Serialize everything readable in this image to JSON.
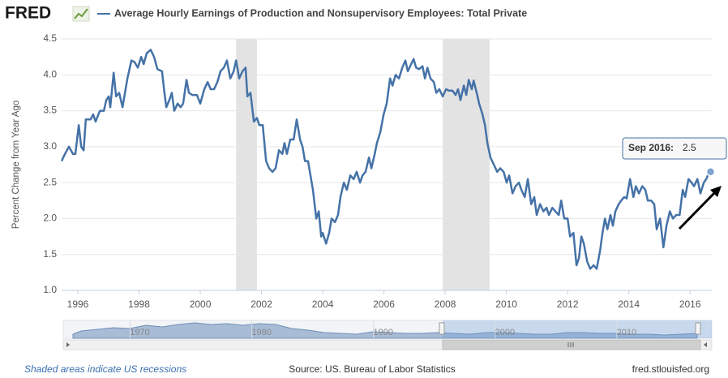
{
  "chart_data": {
    "type": "line",
    "brand": "FRED",
    "title": "Average Hourly Earnings of Production and Nonsupervisory Employees: Total Private",
    "y_label": "Percent Change from Year Ago",
    "footer_left": "Shaded areas indicate US recessions",
    "footer_center": "Source: US. Bureau of Labor Statistics",
    "footer_right": "fred.stlouisfed.org",
    "tooltip_date": "Sep 2016:",
    "color": "#4572a7",
    "recession_color": "#e3e3e3",
    "recessions": [
      [
        2001.17,
        2001.85
      ],
      [
        2007.92,
        2009.45
      ]
    ],
    "xlim": [
      1995.47,
      2016.71
    ],
    "xticks": [
      1996,
      1998,
      2000,
      2002,
      2004,
      2006,
      2008,
      2010,
      2012,
      2014,
      2016
    ],
    "ylim": [
      1,
      4.5
    ],
    "yticks": [
      {
        "value": 1,
        "label": "1.0"
      },
      1.5,
      {
        "value": 2,
        "label": "2.0"
      },
      2.5,
      {
        "value": 3,
        "label": "3.0"
      },
      3.5,
      {
        "value": 4,
        "label": "4.0"
      },
      4.5
    ],
    "grid": true,
    "navigator": {
      "xlim": [
        1964.5,
        2015.8
      ],
      "xticks": [
        1970,
        1980,
        1990,
        2000,
        2010
      ]
    },
    "series": [
      {
        "name": "Average Hourly Earnings of Production and Nonsupervisory Employees: Total Private",
        "color": "#4572a7",
        "x": [
          1995.47,
          1995.58,
          1995.71,
          1995.84,
          1995.92,
          1996.03,
          1996.11,
          1996.19,
          1996.26,
          1996.42,
          1996.5,
          1996.58,
          1996.72,
          1996.85,
          1996.93,
          1997.01,
          1997.06,
          1997.17,
          1997.25,
          1997.35,
          1997.46,
          1997.62,
          1997.75,
          1997.85,
          1997.96,
          1998.07,
          1998.15,
          1998.25,
          1998.38,
          1998.49,
          1998.6,
          1998.75,
          1998.83,
          1998.89,
          1998.99,
          1999.07,
          1999.15,
          1999.26,
          1999.36,
          1999.44,
          1999.55,
          1999.63,
          1999.74,
          1999.89,
          2000,
          2000.13,
          2000.24,
          2000.34,
          2000.45,
          2000.56,
          2000.66,
          2000.77,
          2000.87,
          2000.98,
          2001.09,
          2001.17,
          2001.27,
          2001.38,
          2001.48,
          2001.54,
          2001.64,
          2001.75,
          2001.85,
          2001.93,
          2002.04,
          2002.15,
          2002.25,
          2002.36,
          2002.46,
          2002.57,
          2002.68,
          2002.75,
          2002.83,
          2002.94,
          2003.05,
          2003.15,
          2003.26,
          2003.34,
          2003.42,
          2003.52,
          2003.6,
          2003.68,
          2003.79,
          2003.87,
          2003.95,
          2004,
          2004.11,
          2004.21,
          2004.29,
          2004.4,
          2004.5,
          2004.58,
          2004.69,
          2004.79,
          2004.9,
          2005.01,
          2005.11,
          2005.22,
          2005.3,
          2005.4,
          2005.51,
          2005.59,
          2005.7,
          2005.77,
          2005.88,
          2005.99,
          2006.09,
          2006.2,
          2006.28,
          2006.38,
          2006.49,
          2006.6,
          2006.7,
          2006.78,
          2006.89,
          2006.97,
          2007.05,
          2007.15,
          2007.26,
          2007.34,
          2007.42,
          2007.52,
          2007.63,
          2007.71,
          2007.81,
          2007.92,
          2008.03,
          2008.13,
          2008.24,
          2008.34,
          2008.42,
          2008.5,
          2008.61,
          2008.69,
          2008.77,
          2008.87,
          2008.93,
          2009.03,
          2009.11,
          2009.22,
          2009.3,
          2009.38,
          2009.48,
          2009.59,
          2009.7,
          2009.8,
          2009.91,
          2010.01,
          2010.09,
          2010.2,
          2010.3,
          2010.41,
          2010.49,
          2010.6,
          2010.7,
          2010.81,
          2010.91,
          2010.99,
          2011.1,
          2011.21,
          2011.31,
          2011.39,
          2011.5,
          2011.6,
          2011.71,
          2011.79,
          2011.89,
          2012,
          2012.08,
          2012.19,
          2012.29,
          2012.37,
          2012.45,
          2012.53,
          2012.64,
          2012.74,
          2012.85,
          2012.95,
          2013.06,
          2013.14,
          2013.22,
          2013.3,
          2013.4,
          2013.48,
          2013.56,
          2013.67,
          2013.75,
          2013.85,
          2013.93,
          2014.04,
          2014.15,
          2014.23,
          2014.33,
          2014.44,
          2014.54,
          2014.62,
          2014.73,
          2014.83,
          2014.91,
          2015.02,
          2015.13,
          2015.23,
          2015.34,
          2015.44,
          2015.55,
          2015.66,
          2015.76,
          2015.84,
          2015.95,
          2016.05,
          2016.13,
          2016.24,
          2016.34,
          2016.45,
          2016.53,
          2016.58,
          2016.67
        ],
        "values": [
          2.8,
          2.9,
          3.0,
          2.9,
          2.9,
          3.3,
          3.0,
          2.95,
          3.38,
          3.38,
          3.45,
          3.35,
          3.5,
          3.5,
          3.65,
          3.7,
          3.55,
          4.03,
          3.7,
          3.75,
          3.55,
          3.95,
          4.2,
          4.18,
          4.1,
          4.25,
          4.15,
          4.3,
          4.35,
          4.25,
          4.08,
          4.05,
          3.75,
          3.55,
          3.65,
          3.75,
          3.5,
          3.6,
          3.55,
          3.6,
          3.93,
          3.75,
          3.72,
          3.72,
          3.6,
          3.8,
          3.9,
          3.8,
          3.8,
          3.9,
          4.05,
          4.1,
          4.2,
          3.95,
          4.05,
          4.2,
          3.95,
          4.05,
          4.1,
          3.7,
          3.75,
          3.35,
          3.4,
          3.3,
          3.3,
          2.8,
          2.7,
          2.65,
          2.7,
          2.95,
          2.9,
          3.05,
          2.9,
          3.1,
          3.1,
          3.38,
          3.1,
          3.0,
          2.8,
          2.8,
          2.6,
          2.4,
          2.0,
          2.1,
          1.75,
          1.8,
          1.65,
          1.8,
          2.0,
          1.95,
          2.05,
          2.3,
          2.5,
          2.4,
          2.6,
          2.55,
          2.65,
          2.5,
          2.6,
          2.65,
          2.85,
          2.7,
          2.9,
          3.05,
          3.2,
          3.45,
          3.6,
          3.95,
          3.85,
          4.0,
          3.95,
          4.1,
          4.2,
          4.05,
          4.15,
          4.22,
          4.1,
          4.08,
          4.12,
          3.95,
          4.1,
          3.95,
          3.9,
          3.75,
          3.8,
          3.7,
          3.8,
          3.78,
          3.78,
          3.72,
          3.8,
          3.65,
          3.85,
          3.72,
          3.93,
          3.8,
          3.92,
          3.75,
          3.6,
          3.45,
          3.3,
          3.05,
          2.85,
          2.75,
          2.65,
          2.7,
          2.65,
          2.5,
          2.6,
          2.35,
          2.45,
          2.5,
          2.4,
          2.3,
          2.55,
          2.2,
          2.3,
          2.05,
          2.2,
          2.1,
          2.15,
          2.05,
          2.15,
          2.1,
          2.05,
          2.25,
          2.0,
          2.0,
          1.75,
          1.8,
          1.35,
          1.45,
          1.75,
          1.65,
          1.4,
          1.3,
          1.35,
          1.3,
          1.55,
          1.8,
          2.0,
          1.85,
          2.05,
          1.9,
          2.1,
          2.2,
          2.25,
          2.3,
          2.28,
          2.55,
          2.3,
          2.45,
          2.35,
          2.45,
          2.4,
          2.25,
          2.25,
          2.2,
          1.85,
          2.0,
          1.6,
          1.9,
          2.1,
          2.0,
          2.05,
          2.05,
          2.4,
          2.3,
          2.55,
          2.5,
          2.45,
          2.55,
          2.35,
          2.5,
          2.55,
          2.6,
          2.65152
        ]
      }
    ]
  }
}
